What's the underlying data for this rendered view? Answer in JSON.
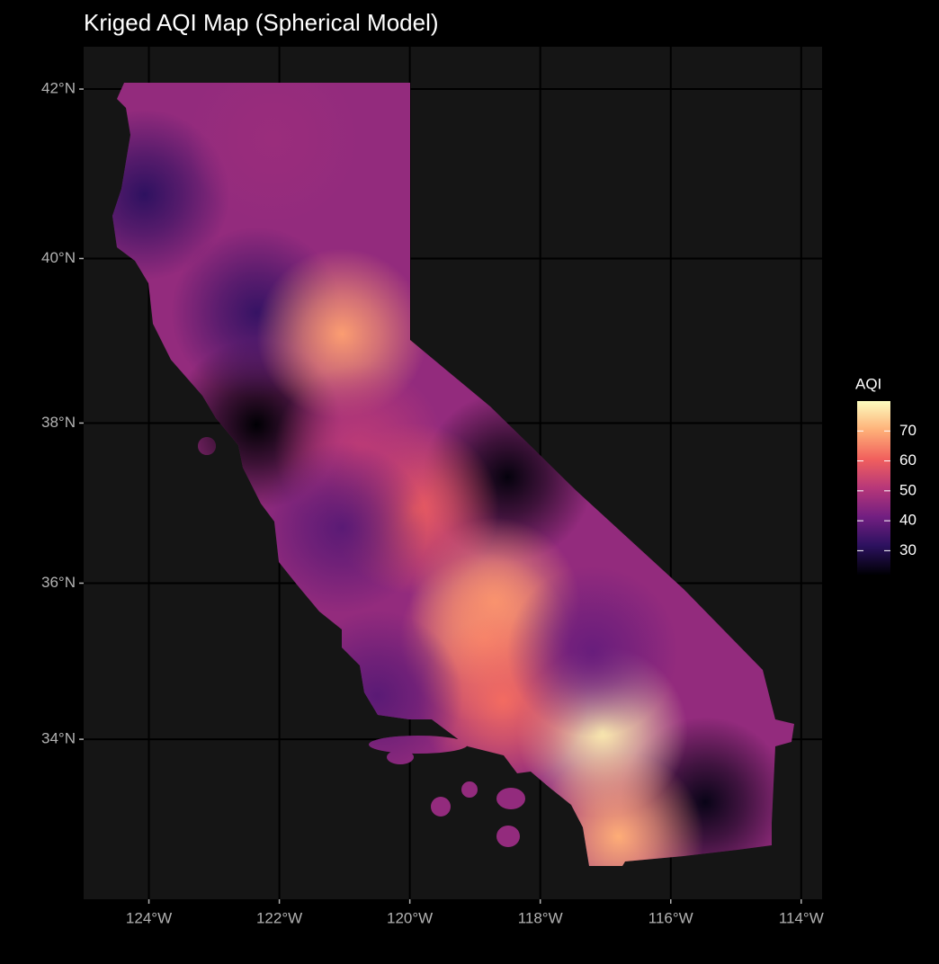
{
  "chart_data": {
    "type": "heatmap-map",
    "title": "Kriged AQI Map (Spherical Model)",
    "projection": "mercator",
    "xlim": [
      -125.0,
      -113.68
    ],
    "ylim": [
      31.9,
      42.49
    ],
    "xticks": [
      {
        "value": -124,
        "label": "124°W"
      },
      {
        "value": -122,
        "label": "122°W"
      },
      {
        "value": -120,
        "label": "120°W"
      },
      {
        "value": -118,
        "label": "118°W"
      },
      {
        "value": -116,
        "label": "116°W"
      },
      {
        "value": -114,
        "label": "114°W"
      }
    ],
    "yticks": [
      {
        "value": 34,
        "label": "34°N"
      },
      {
        "value": 36,
        "label": "36°N"
      },
      {
        "value": 38,
        "label": "38°N"
      },
      {
        "value": 40,
        "label": "40°N"
      },
      {
        "value": 42,
        "label": "42°N"
      }
    ],
    "grid": true,
    "base_value": 46,
    "points": [
      {
        "lon": -124.07,
        "lat": 40.76,
        "value": 32
      },
      {
        "lon": -122.35,
        "lat": 37.98,
        "value": 22
      },
      {
        "lon": -118.5,
        "lat": 37.33,
        "value": 23
      },
      {
        "lon": -115.47,
        "lat": 33.18,
        "value": 24
      },
      {
        "lon": -122.35,
        "lat": 39.35,
        "value": 33
      },
      {
        "lon": -121.04,
        "lat": 39.09,
        "value": 68
      },
      {
        "lon": -117.05,
        "lat": 34.1,
        "value": 78
      },
      {
        "lon": -118.7,
        "lat": 35.75,
        "value": 68
      },
      {
        "lon": -118.84,
        "lat": 35.3,
        "value": 66
      },
      {
        "lon": -116.8,
        "lat": 32.73,
        "value": 70
      },
      {
        "lon": -119.94,
        "lat": 36.94,
        "value": 60
      },
      {
        "lon": -120.77,
        "lat": 37.67,
        "value": 52
      },
      {
        "lon": -118.57,
        "lat": 34.5,
        "value": 62
      },
      {
        "lon": -121.04,
        "lat": 36.7,
        "value": 38
      },
      {
        "lon": -117.2,
        "lat": 35.13,
        "value": 40
      },
      {
        "lon": -120.5,
        "lat": 34.56,
        "value": 38
      },
      {
        "lon": -122.1,
        "lat": 41.42,
        "value": 47
      }
    ],
    "colorbar": {
      "title": "AQI",
      "limits": [
        22,
        80
      ],
      "ticks": [
        30,
        40,
        50,
        60,
        70
      ],
      "palette": [
        "#000004",
        "#2c115f",
        "#721f81",
        "#b73779",
        "#f1605d",
        "#feb078",
        "#fcfdbf"
      ]
    }
  }
}
